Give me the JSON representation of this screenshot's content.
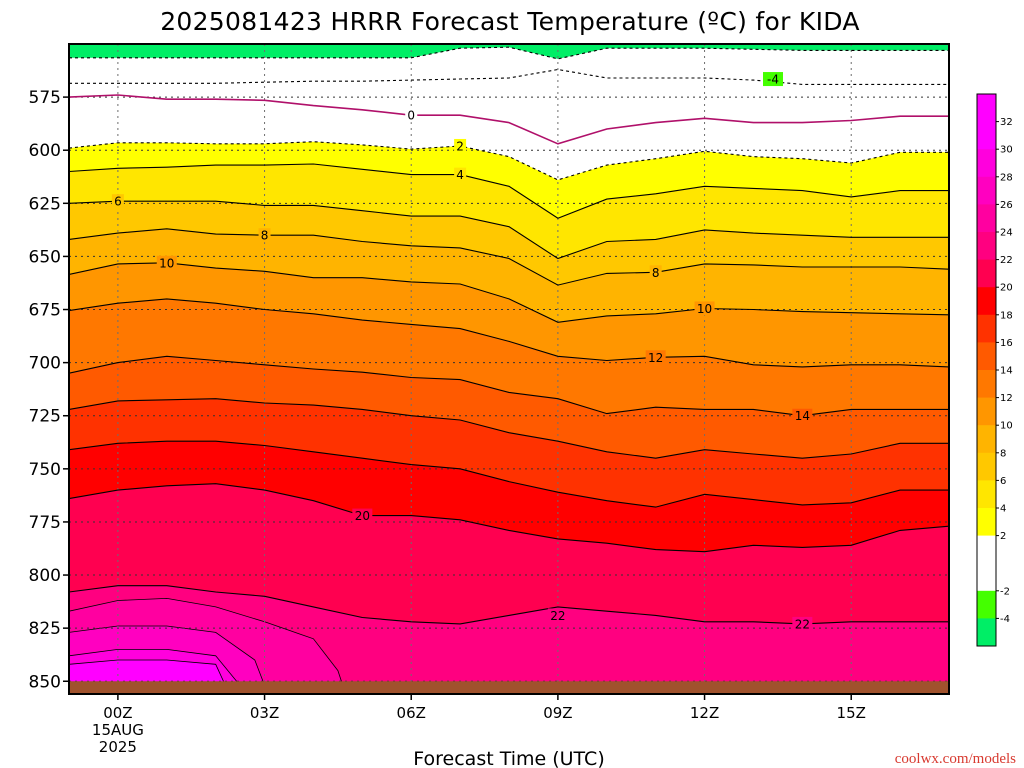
{
  "chart_data": {
    "type": "contour",
    "title": "2025081423 HRRR Forecast Temperature (ºC) for KIDA",
    "xlabel": "Forecast Time (UTC)",
    "ylabel": "",
    "xlim": [
      -1,
      17
    ],
    "ylim": [
      550,
      856
    ],
    "y_inverted": true,
    "x_ticks": [
      {
        "x": 0,
        "label": "00Z",
        "sub1": "15AUG",
        "sub2": "2025"
      },
      {
        "x": 3,
        "label": "03Z",
        "sub1": "",
        "sub2": ""
      },
      {
        "x": 6,
        "label": "06Z",
        "sub1": "",
        "sub2": ""
      },
      {
        "x": 9,
        "label": "09Z",
        "sub1": "",
        "sub2": ""
      },
      {
        "x": 12,
        "label": "12Z",
        "sub1": "",
        "sub2": ""
      },
      {
        "x": 15,
        "label": "15Z",
        "sub1": "",
        "sub2": ""
      }
    ],
    "y_ticks": [
      575,
      600,
      625,
      650,
      675,
      700,
      725,
      750,
      775,
      800,
      825,
      850
    ],
    "grid": "dotted",
    "ground_level_hpa": 850,
    "x_hours": [
      -1,
      0,
      1,
      2,
      3,
      4,
      5,
      6,
      7,
      8,
      9,
      10,
      11,
      12,
      13,
      14,
      15,
      16,
      17
    ],
    "contours": [
      {
        "level": -4,
        "p": [
          568.5,
          568.5,
          568.5,
          568.5,
          568.0,
          567.5,
          567.5,
          567.0,
          566.5,
          566.0,
          562.0,
          566.0,
          566.0,
          566.0,
          567.0,
          569.0,
          569.0,
          569.0,
          569.0
        ]
      },
      {
        "level": -2,
        "p": [
          556.5,
          556.5,
          556.5,
          556.5,
          556.5,
          556.5,
          556.5,
          556.5,
          552.0,
          551.5,
          557.0,
          552.0,
          552.0,
          552.0,
          552.5,
          553.0,
          553.0,
          553.0,
          553.0
        ]
      },
      {
        "level": 0,
        "p": [
          575.0,
          574.0,
          576.0,
          576.0,
          576.5,
          579.0,
          581.0,
          583.5,
          583.5,
          587.0,
          597.0,
          590.0,
          587.0,
          585.0,
          587.0,
          587.0,
          586.0,
          584.0,
          584.0
        ]
      },
      {
        "level": 2,
        "p": [
          599.0,
          596.5,
          596.5,
          597.0,
          597.0,
          596.0,
          597.5,
          599.5,
          598.0,
          603.0,
          614.0,
          607.0,
          604.0,
          600.5,
          603.0,
          604.0,
          606.0,
          601.0,
          601.0
        ]
      },
      {
        "level": 4,
        "p": [
          610.0,
          608.5,
          608.0,
          607.0,
          607.0,
          606.5,
          609.0,
          611.5,
          611.5,
          617.0,
          632.0,
          623.0,
          620.5,
          617.0,
          618.0,
          619.0,
          622.0,
          619.0,
          619.0
        ]
      },
      {
        "level": 6,
        "p": [
          625.0,
          624.0,
          624.0,
          624.0,
          626.0,
          626.0,
          628.5,
          631.0,
          631.0,
          636.0,
          651.0,
          643.0,
          642.0,
          637.5,
          639.0,
          640.0,
          641.0,
          641.0,
          641.0
        ]
      },
      {
        "level": 8,
        "p": [
          642.0,
          639.0,
          637.0,
          639.5,
          640.0,
          640.0,
          643.0,
          645.0,
          646.0,
          651.0,
          663.5,
          658.0,
          657.5,
          653.5,
          654.0,
          655.0,
          655.0,
          655.0,
          656.0
        ]
      },
      {
        "level": 10,
        "p": [
          658.5,
          653.5,
          653.0,
          655.5,
          657.0,
          660.0,
          660.0,
          662.0,
          663.0,
          670.0,
          681.0,
          678.0,
          677.0,
          674.5,
          675.0,
          676.0,
          676.5,
          677.0,
          677.5
        ]
      },
      {
        "level": 12,
        "p": [
          675.5,
          672.0,
          670.0,
          672.0,
          675.0,
          677.0,
          680.0,
          682.0,
          684.0,
          690.0,
          697.0,
          699.0,
          697.5,
          697.0,
          701.0,
          702.0,
          701.0,
          701.0,
          702.0
        ]
      },
      {
        "level": 14,
        "p": [
          705.0,
          700.0,
          697.0,
          699.0,
          701.0,
          703.0,
          704.5,
          707.0,
          708.0,
          714.0,
          717.0,
          724.0,
          721.0,
          722.0,
          722.0,
          725.0,
          722.0,
          722.0,
          722.0
        ]
      },
      {
        "level": 16,
        "p": [
          722.0,
          718.0,
          717.5,
          717.0,
          719.0,
          720.0,
          722.0,
          725.0,
          727.0,
          733.0,
          737.0,
          742.0,
          745.0,
          741.0,
          743.0,
          745.0,
          743.0,
          738.0,
          738.0
        ]
      },
      {
        "level": 18,
        "p": [
          741.0,
          738.0,
          737.0,
          737.0,
          739.0,
          742.0,
          745.0,
          748.0,
          750.0,
          756.0,
          761.0,
          765.0,
          768.0,
          762.0,
          764.5,
          767.0,
          766.0,
          760.0,
          760.0
        ]
      },
      {
        "level": 20,
        "p": [
          764.0,
          760.0,
          758.0,
          757.0,
          760.0,
          765.0,
          772.0,
          772.0,
          774.0,
          779.0,
          783.0,
          785.0,
          788.0,
          789.0,
          786.0,
          787.0,
          786.0,
          779.0,
          777.0
        ]
      },
      {
        "level": 22,
        "p": [
          808.0,
          805.0,
          805.0,
          808.0,
          810.0,
          815.0,
          820.0,
          822.0,
          823.0,
          819.0,
          815.0,
          817.0,
          819.0,
          822.0,
          822.0,
          823.0,
          822.0,
          822.0,
          822.0
        ]
      }
    ],
    "color_scale": [
      {
        "min": -6,
        "max": -4,
        "color": "#00ee66"
      },
      {
        "min": -4,
        "max": -2,
        "color": "#44ff00"
      },
      {
        "min": -2,
        "max": 0,
        "color": "#ffffff"
      },
      {
        "min": 0,
        "max": 2,
        "color": "#ffffff"
      },
      {
        "min": 2,
        "max": 4,
        "color": "#ffff00"
      },
      {
        "min": 4,
        "max": 6,
        "color": "#ffe600"
      },
      {
        "min": 6,
        "max": 8,
        "color": "#ffc800"
      },
      {
        "min": 8,
        "max": 10,
        "color": "#ffb400"
      },
      {
        "min": 10,
        "max": 12,
        "color": "#ff9600"
      },
      {
        "min": 12,
        "max": 14,
        "color": "#ff7800"
      },
      {
        "min": 14,
        "max": 16,
        "color": "#ff5a00"
      },
      {
        "min": 16,
        "max": 18,
        "color": "#ff3200"
      },
      {
        "min": 18,
        "max": 20,
        "color": "#ff0000"
      },
      {
        "min": 20,
        "max": 22,
        "color": "#ff0050"
      },
      {
        "min": 22,
        "max": 24,
        "color": "#ff0080"
      },
      {
        "min": 24,
        "max": 26,
        "color": "#ff00a0"
      },
      {
        "min": 26,
        "max": 28,
        "color": "#ff00c0"
      },
      {
        "min": 28,
        "max": 30,
        "color": "#ff00dd"
      },
      {
        "min": 30,
        "max": 32,
        "color": "#ff00ff"
      },
      {
        "min": 32,
        "max": 34,
        "color": "#ff00ff"
      }
    ],
    "colorbar_ticks": [
      32,
      30,
      28,
      26,
      24,
      22,
      20,
      18,
      16,
      14,
      12,
      10,
      8,
      6,
      4,
      2,
      -2,
      -4
    ],
    "contour_labels": [
      {
        "level": -4,
        "text": "-4",
        "x": 13.4,
        "p": 566.5
      },
      {
        "level": 0,
        "text": "0",
        "x": 6.0,
        "p": 583.5
      },
      {
        "level": 2,
        "text": "2",
        "x": 7.0,
        "p": 598.0
      },
      {
        "level": 4,
        "text": "4",
        "x": 7.0,
        "p": 611.5
      },
      {
        "level": 6,
        "text": "6",
        "x": 0.0,
        "p": 624.0
      },
      {
        "level": 8,
        "text": "8",
        "x": 3.0,
        "p": 640.0
      },
      {
        "level": 8,
        "text": "8",
        "x": 11.0,
        "p": 657.5
      },
      {
        "level": 10,
        "text": "10",
        "x": 1.0,
        "p": 653.0
      },
      {
        "level": 10,
        "text": "10",
        "x": 12.0,
        "p": 674.5
      },
      {
        "level": 12,
        "text": "12",
        "x": 11.0,
        "p": 697.5
      },
      {
        "level": 14,
        "text": "14",
        "x": 14.0,
        "p": 725.0
      },
      {
        "level": 20,
        "text": "20",
        "x": 5.0,
        "p": 772.0
      },
      {
        "level": 22,
        "text": "22",
        "x": 9.0,
        "p": 819.0
      },
      {
        "level": 22,
        "text": "22",
        "x": 14.0,
        "p": 823.0
      }
    ]
  },
  "credit": "coolwx.com/models",
  "colors": {
    "ground": "#a0522d",
    "axis": "#000000",
    "grid": "#6e6e6e",
    "contour_line": "#000000",
    "zero_line": "#b0106a",
    "credit": "#d83a30"
  }
}
